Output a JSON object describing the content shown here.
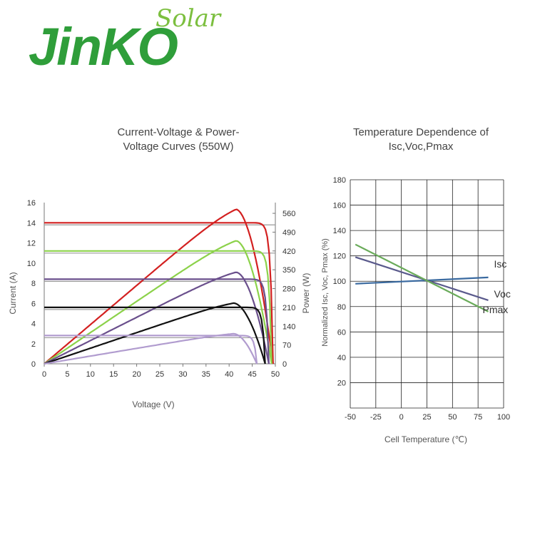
{
  "logo": {
    "main": "JinKO",
    "sub": "Solar",
    "color": "#2f9e3a",
    "sub_color": "#7cbf3f"
  },
  "chart_data": [
    {
      "type": "line",
      "title_line1": "Current-Voltage & Power-",
      "title_line2": "Voltage Curves (550W)",
      "xlabel": "Voltage (V)",
      "ylabel": "Current (A)",
      "y2label": "Power (W)",
      "xlim": [
        0,
        50
      ],
      "ylim": [
        0,
        16
      ],
      "y2lim": [
        0,
        600
      ],
      "xticks": [
        "0",
        "5",
        "10",
        "15",
        "20",
        "25",
        "30",
        "35",
        "40",
        "45",
        "50"
      ],
      "yticks": [
        "0",
        "2",
        "4",
        "6",
        "8",
        "10",
        "12",
        "14",
        "16"
      ],
      "y2ticks": [
        "0",
        "70",
        "140",
        "210",
        "280",
        "350",
        "420",
        "490",
        "560"
      ],
      "series": [
        {
          "isc": 14.0,
          "voc": 49.5,
          "pmax": 575,
          "vmp": 41.5,
          "color": "#d32020"
        },
        {
          "isc": 11.2,
          "voc": 49.2,
          "pmax": 458,
          "vmp": 41.5,
          "color": "#8cd24a"
        },
        {
          "isc": 8.4,
          "voc": 48.6,
          "pmax": 341,
          "vmp": 41.5,
          "color": "#6a4f8c"
        },
        {
          "isc": 5.6,
          "voc": 47.8,
          "pmax": 226,
          "vmp": 41.0,
          "color": "#111111"
        },
        {
          "isc": 2.8,
          "voc": 46.0,
          "pmax": 112,
          "vmp": 41.0,
          "color": "#b19ccf"
        }
      ]
    },
    {
      "type": "line",
      "title_line1": "Temperature Dependence of",
      "title_line2": "Isc,Voc,Pmax",
      "xlabel": "Cell Temperature (℃)",
      "ylabel": "Normalized Isc, Voc, Pmax (%)",
      "xlim": [
        -50,
        100
      ],
      "ylim": [
        0,
        180
      ],
      "xticks": [
        "-50",
        "-25",
        "0",
        "25",
        "50",
        "75",
        "100"
      ],
      "yticks": [
        "20",
        "40",
        "60",
        "80",
        "100",
        "120",
        "140",
        "160",
        "180"
      ],
      "series": [
        {
          "name": "Isc",
          "x": [
            -45,
            85
          ],
          "y": [
            98,
            103
          ],
          "color": "#3a6aa0"
        },
        {
          "name": "Voc",
          "x": [
            -45,
            85
          ],
          "y": [
            119,
            85
          ],
          "color": "#5a5a8c"
        },
        {
          "name": "Pmax",
          "x": [
            -45,
            85
          ],
          "y": [
            129,
            76
          ],
          "color": "#6aab5a"
        }
      ]
    }
  ]
}
